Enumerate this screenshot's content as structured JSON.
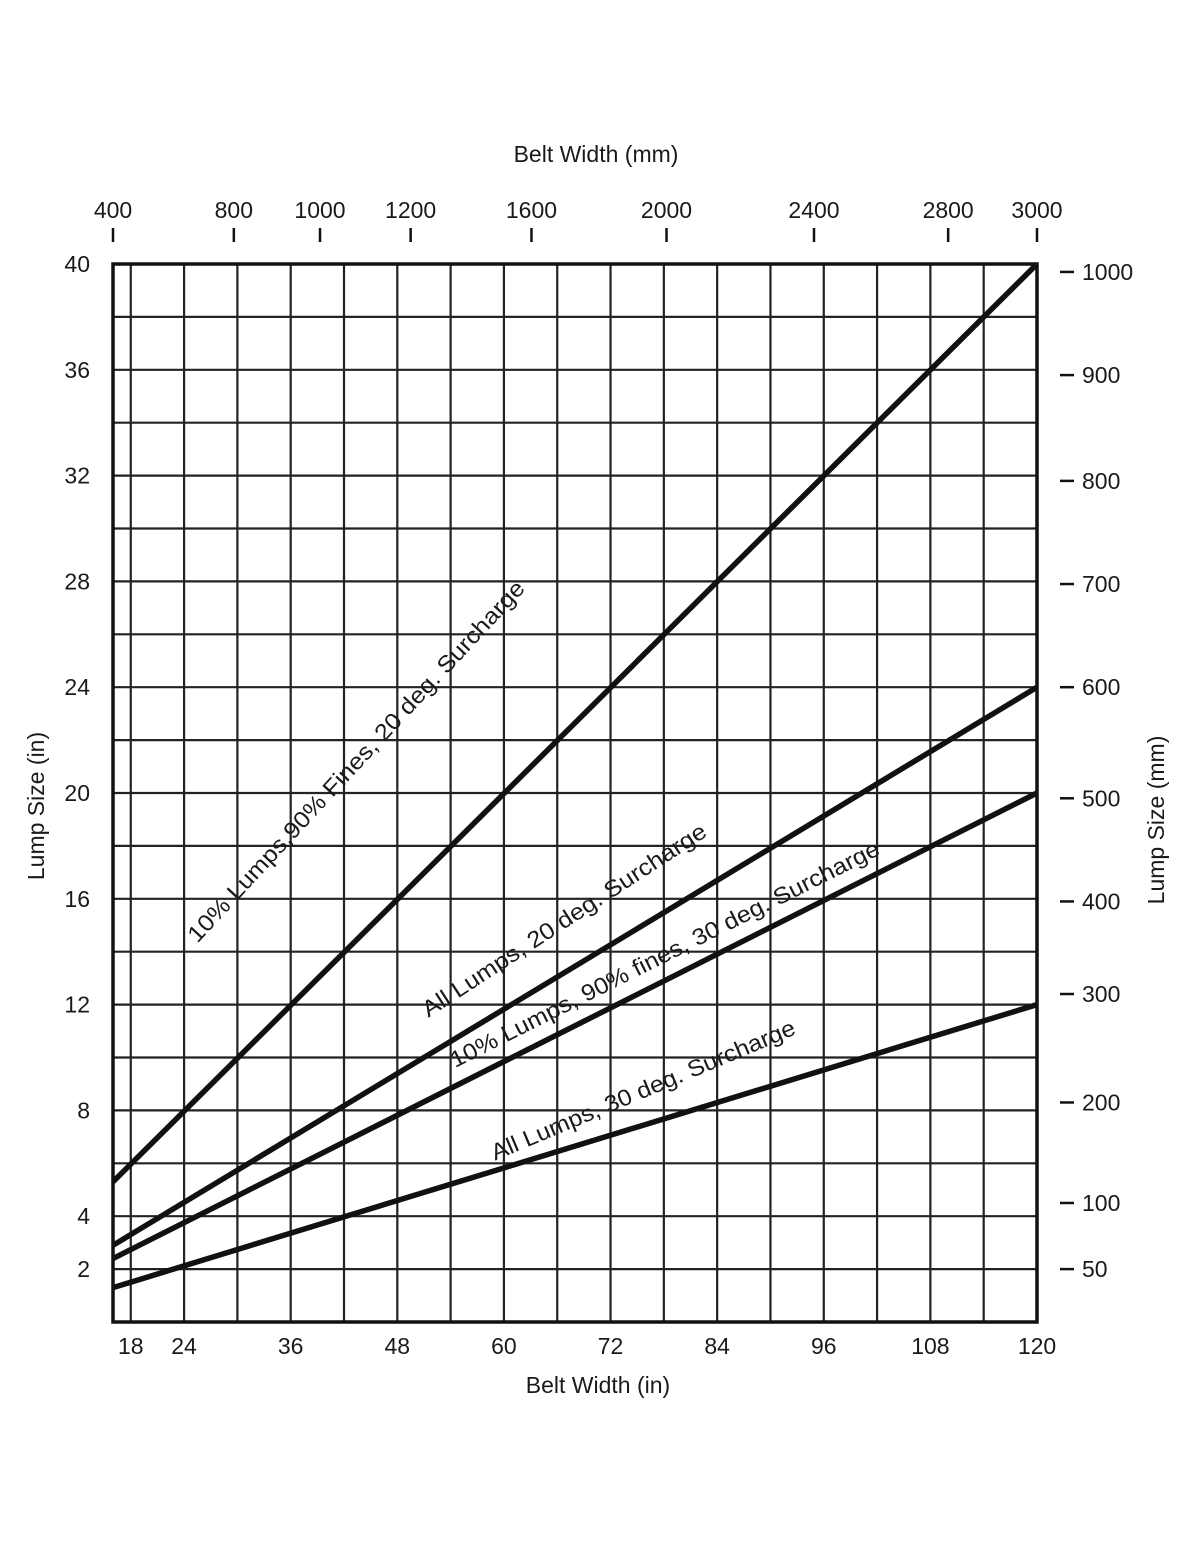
{
  "chart_data": {
    "type": "line",
    "title": "",
    "xlabel_bottom": "Belt Width (in)",
    "xlabel_top": "Belt Width (mm)",
    "ylabel_left": "Lump Size (in)",
    "ylabel_right": "Lump Size (mm)",
    "xlim": [
      16,
      120
    ],
    "ylim": [
      0,
      40
    ],
    "grid": true,
    "x_ticks_bottom": [
      18,
      24,
      36,
      48,
      60,
      72,
      84,
      96,
      108,
      120
    ],
    "y_ticks_left": [
      2,
      4,
      8,
      12,
      16,
      20,
      24,
      28,
      32,
      36,
      40
    ],
    "x_ticks_top": [
      {
        "label": "400",
        "x": 16
      },
      {
        "label": "800",
        "x": 29.6
      },
      {
        "label": "1000",
        "x": 39.3
      },
      {
        "label": "1200",
        "x": 49.5
      },
      {
        "label": "1600",
        "x": 63.1
      },
      {
        "label": "2000",
        "x": 78.3
      },
      {
        "label": "2400",
        "x": 94.9
      },
      {
        "label": "2800",
        "x": 110
      },
      {
        "label": "3000",
        "x": 120
      }
    ],
    "y_ticks_right": [
      {
        "label": "1000",
        "y": 39.7
      },
      {
        "label": "900",
        "y": 35.8
      },
      {
        "label": "800",
        "y": 31.8
      },
      {
        "label": "700",
        "y": 27.9
      },
      {
        "label": "600",
        "y": 24
      },
      {
        "label": "500",
        "y": 19.8
      },
      {
        "label": "400",
        "y": 15.9
      },
      {
        "label": "300",
        "y": 12.4
      },
      {
        "label": "200",
        "y": 8.3
      },
      {
        "label": "100",
        "y": 4.5
      },
      {
        "label": "50",
        "y": 2
      }
    ],
    "series": [
      {
        "name": "10% Lumps,90% Fines, 20 deg. Surcharge",
        "x": [
          16,
          120
        ],
        "y": [
          5.3,
          40
        ],
        "label_pos": [
          25.5,
          62.5
        ],
        "label_y": [
          14.3,
          27.7
        ]
      },
      {
        "name": "All Lumps, 20 deg. Surcharge",
        "x": [
          16,
          120
        ],
        "y": [
          2.9,
          24
        ],
        "label_pos": [
          51.5,
          83
        ],
        "label_y": [
          11.5,
          18.4
        ]
      },
      {
        "name": "10% Lumps, 90% fines, 30 deg. Surcharge",
        "x": [
          16,
          120
        ],
        "y": [
          2.4,
          20
        ],
        "label_pos": [
          54.5,
          102.5
        ],
        "label_y": [
          9.6,
          17.7
        ]
      },
      {
        "name": "All Lumps, 30 deg. Surcharge",
        "x": [
          16,
          120
        ],
        "y": [
          1.3,
          12
        ],
        "label_pos": [
          59,
          93
        ],
        "label_y": [
          6.1,
          10.9
        ]
      }
    ]
  }
}
